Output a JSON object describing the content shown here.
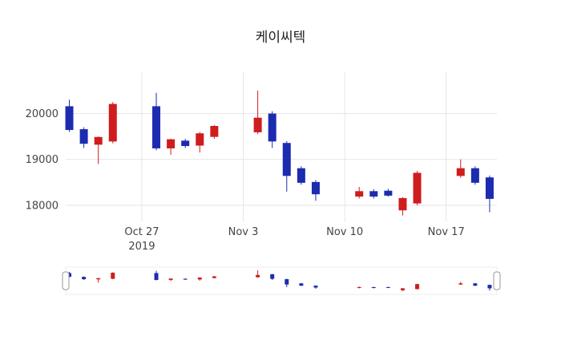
{
  "chart_data": {
    "type": "candlestick",
    "title": "케이씨텍",
    "legend": "none",
    "grid": true,
    "rangeslider": true,
    "x_range": [
      "2019-10-21T18:00:00",
      "2019-11-20T12:00:00"
    ],
    "y_range": [
      17650,
      20900
    ],
    "x_ticks": [
      {
        "date": "2019-10-27",
        "label": "Oct 27",
        "sublabel": "2019"
      },
      {
        "date": "2019-11-03",
        "label": "Nov 3"
      },
      {
        "date": "2019-11-10",
        "label": "Nov 10"
      },
      {
        "date": "2019-11-17",
        "label": "Nov 17"
      }
    ],
    "y_ticks": [
      {
        "value": 18000,
        "label": "18000"
      },
      {
        "value": 19000,
        "label": "19000"
      },
      {
        "value": 20000,
        "label": "20000"
      }
    ],
    "style": {
      "increasing_color": "#cf1d1d",
      "decreasing_color": "#1c2cb0",
      "grid_color": "#e6e6e6",
      "axis_text_color": "#444444",
      "title_color": "#1f1f1f",
      "slider_border_color": "#ececec",
      "handle_fill": "#ffffff",
      "handle_border_color": "#999999",
      "background": "#ffffff"
    },
    "candles": [
      {
        "date": "2019-10-22",
        "open": 20150,
        "high": 20300,
        "low": 19600,
        "close": 19650
      },
      {
        "date": "2019-10-23",
        "open": 19650,
        "high": 19700,
        "low": 19250,
        "close": 19350
      },
      {
        "date": "2019-10-24",
        "open": 19330,
        "high": 19500,
        "low": 18900,
        "close": 19480
      },
      {
        "date": "2019-10-25",
        "open": 19400,
        "high": 20250,
        "low": 19350,
        "close": 20200
      },
      {
        "date": "2019-10-28",
        "open": 20150,
        "high": 20450,
        "low": 19200,
        "close": 19250
      },
      {
        "date": "2019-10-29",
        "open": 19250,
        "high": 19450,
        "low": 19100,
        "close": 19430
      },
      {
        "date": "2019-10-30",
        "open": 19400,
        "high": 19450,
        "low": 19250,
        "close": 19300
      },
      {
        "date": "2019-10-31",
        "open": 19310,
        "high": 19600,
        "low": 19150,
        "close": 19560
      },
      {
        "date": "2019-11-01",
        "open": 19500,
        "high": 19750,
        "low": 19450,
        "close": 19720
      },
      {
        "date": "2019-11-04",
        "open": 19600,
        "high": 20500,
        "low": 19550,
        "close": 19900
      },
      {
        "date": "2019-11-05",
        "open": 19990,
        "high": 20050,
        "low": 19250,
        "close": 19400
      },
      {
        "date": "2019-11-06",
        "open": 19350,
        "high": 19400,
        "low": 18300,
        "close": 18650
      },
      {
        "date": "2019-11-07",
        "open": 18800,
        "high": 18850,
        "low": 18450,
        "close": 18500
      },
      {
        "date": "2019-11-08",
        "open": 18500,
        "high": 18550,
        "low": 18100,
        "close": 18250
      },
      {
        "date": "2019-11-11",
        "open": 18200,
        "high": 18400,
        "low": 18150,
        "close": 18300
      },
      {
        "date": "2019-11-12",
        "open": 18300,
        "high": 18350,
        "low": 18150,
        "close": 18200
      },
      {
        "date": "2019-11-13",
        "open": 18310,
        "high": 18360,
        "low": 18190,
        "close": 18220
      },
      {
        "date": "2019-11-14",
        "open": 17900,
        "high": 18180,
        "low": 17780,
        "close": 18150
      },
      {
        "date": "2019-11-15",
        "open": 18050,
        "high": 18750,
        "low": 18000,
        "close": 18700
      },
      {
        "date": "2019-11-18",
        "open": 18650,
        "high": 19000,
        "low": 18600,
        "close": 18800
      },
      {
        "date": "2019-11-19",
        "open": 18800,
        "high": 18850,
        "low": 18450,
        "close": 18500
      },
      {
        "date": "2019-11-20",
        "open": 18600,
        "high": 18650,
        "low": 17850,
        "close": 18150
      }
    ]
  }
}
